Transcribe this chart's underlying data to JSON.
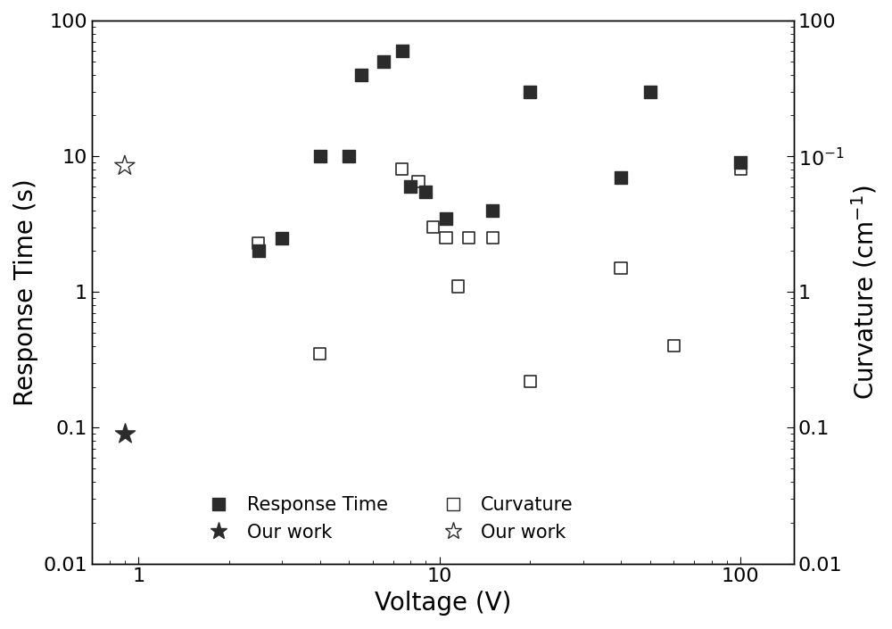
{
  "title": "",
  "xlabel": "Voltage (V)",
  "ylabel_left": "Response Time (s)",
  "ylabel_right": "Curvature (cm$^{-1}$)",
  "xlim": [
    0.7,
    150
  ],
  "ylim_left": [
    0.01,
    100
  ],
  "ylim_right": [
    0.01,
    100
  ],
  "response_time_x": [
    2.5,
    3.0,
    4.0,
    5.0,
    5.5,
    6.5,
    7.5,
    8.0,
    9.0,
    10.5,
    15.0,
    20.0,
    40.0,
    50.0,
    100.0
  ],
  "response_time_y": [
    2.0,
    2.5,
    10.0,
    10.0,
    40.0,
    50.0,
    60.0,
    6.0,
    5.5,
    3.5,
    4.0,
    30.0,
    7.0,
    30.0,
    9.0
  ],
  "curvature_x": [
    2.5,
    4.0,
    7.5,
    8.5,
    9.5,
    10.5,
    11.5,
    12.5,
    15.0,
    20.0,
    40.0,
    60.0,
    100.0
  ],
  "curvature_y": [
    2.3,
    0.35,
    8.0,
    6.5,
    3.0,
    2.5,
    1.1,
    2.5,
    2.5,
    0.22,
    1.5,
    0.4,
    8.0
  ],
  "our_work_rt_x": [
    0.9
  ],
  "our_work_rt_y": [
    0.09
  ],
  "our_work_curv_x": [
    0.9
  ],
  "our_work_curv_y": [
    8.5
  ],
  "background_color": "#ffffff",
  "marker_color_filled": "#2b2b2b",
  "marker_color_open": "#2b2b2b",
  "marker_size": 90,
  "star_size_filled": 280,
  "star_size_open": 280,
  "font_size_labels": 20,
  "font_size_ticks": 16,
  "font_size_legend": 15
}
